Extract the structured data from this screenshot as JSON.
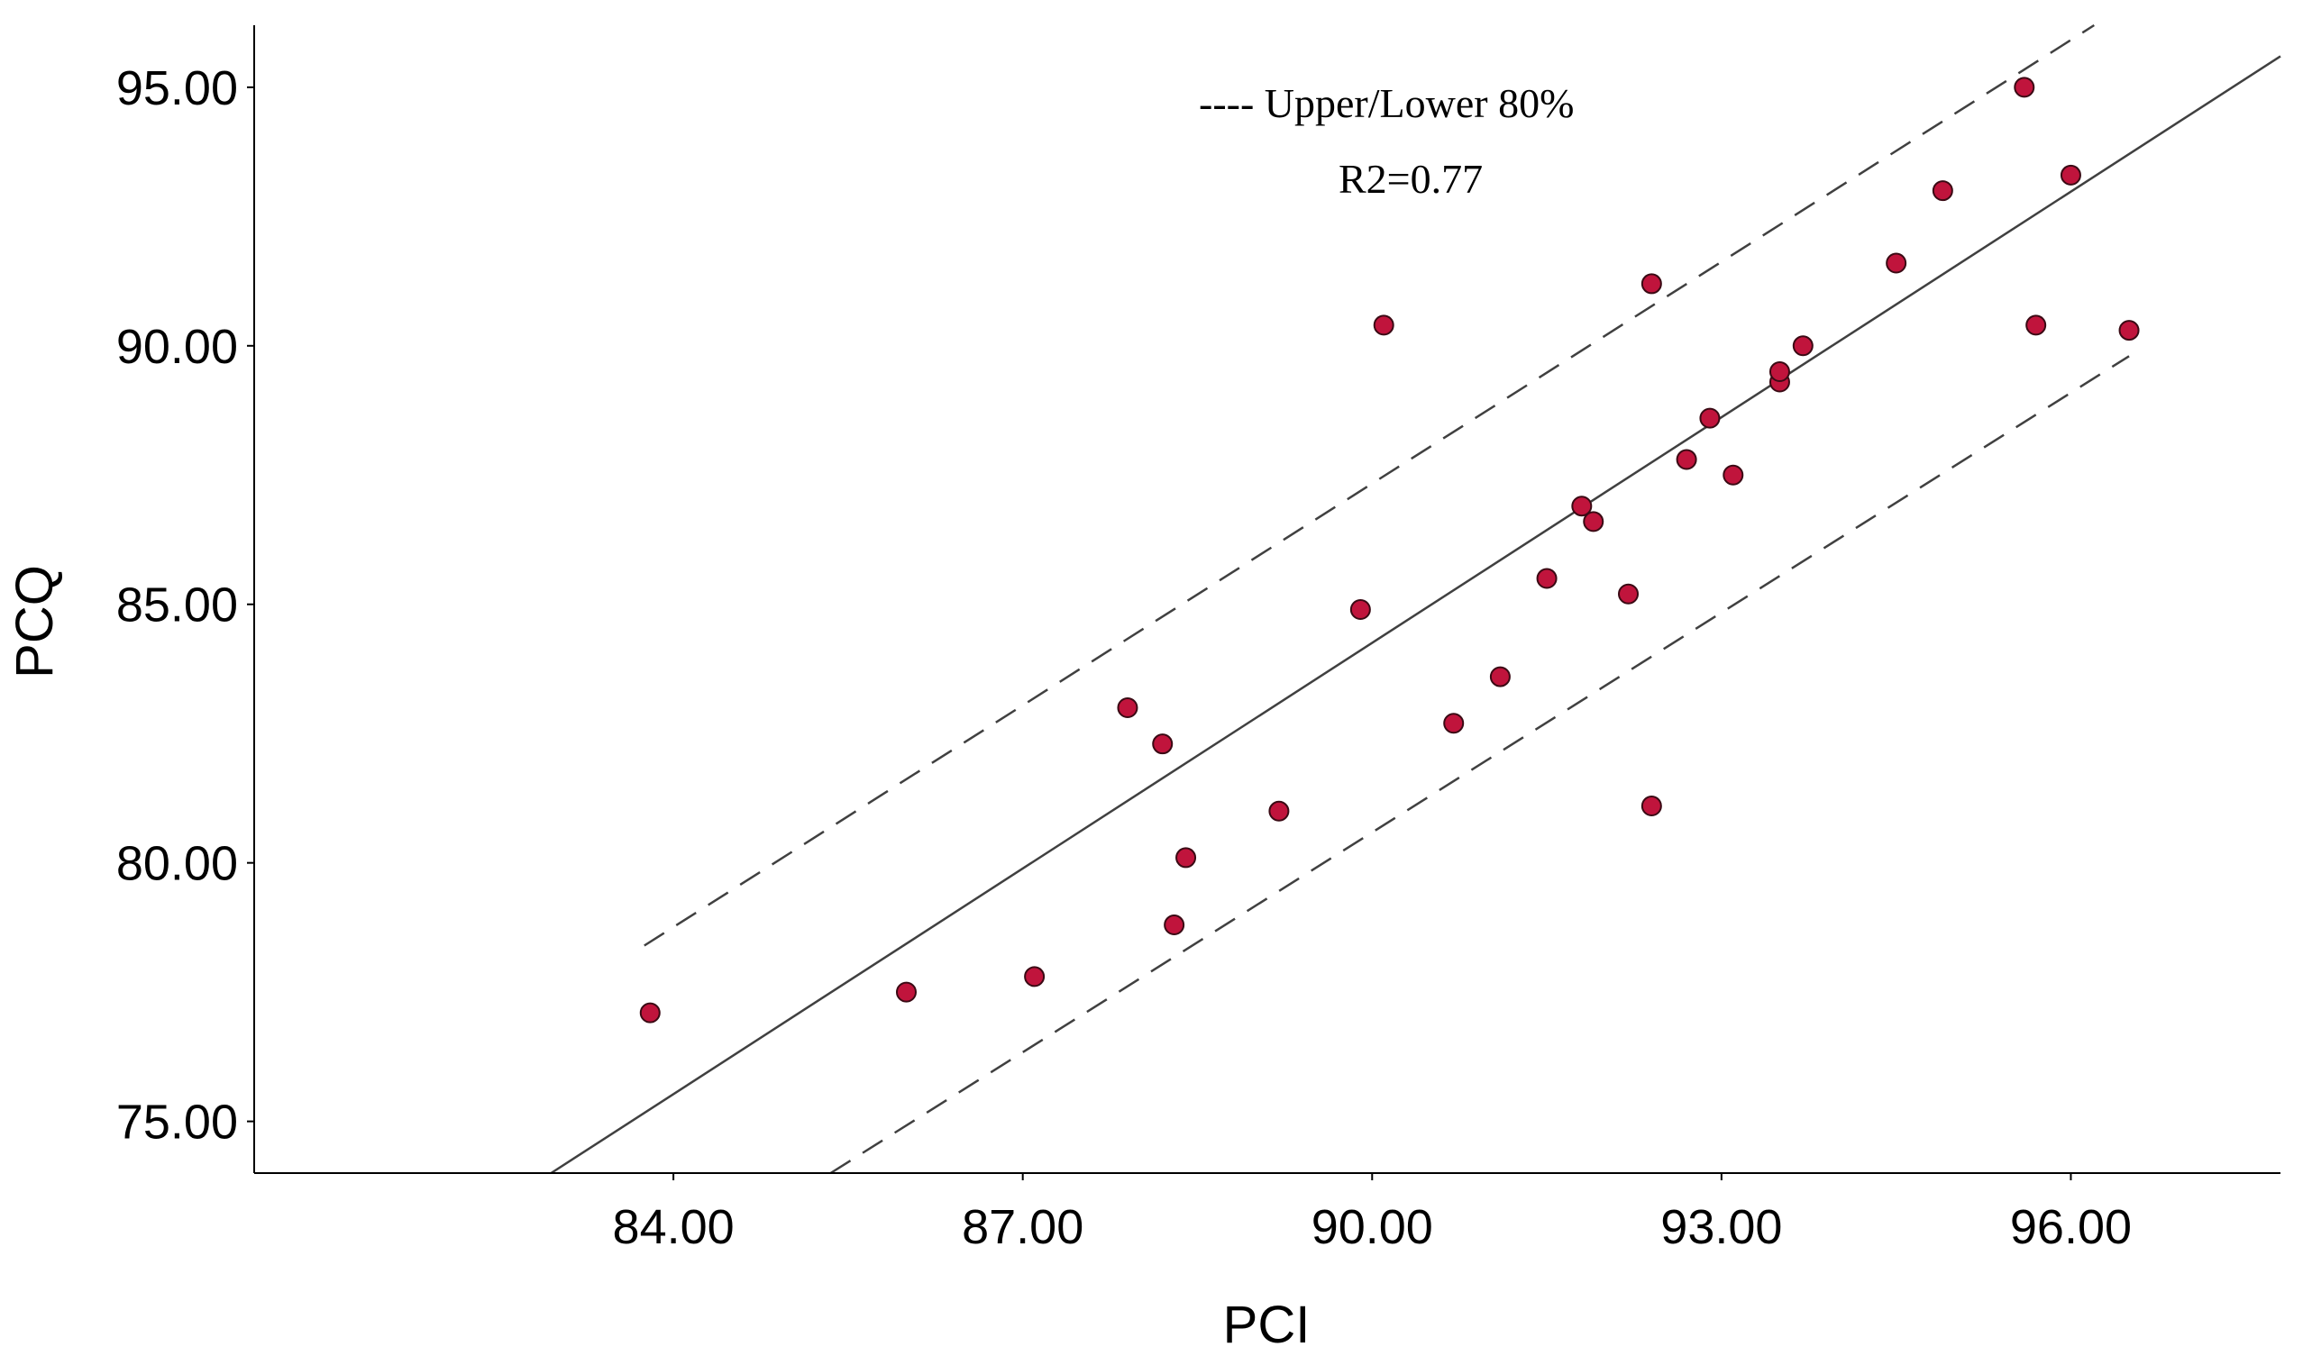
{
  "chart_data": {
    "type": "scatter",
    "xlabel": "PCI",
    "ylabel": "PCQ",
    "xlim": [
      80.4,
      97.8
    ],
    "ylim": [
      74.0,
      96.2
    ],
    "xticks": [
      "84.00",
      "87.00",
      "90.00",
      "93.00",
      "96.00"
    ],
    "xtick_values": [
      84,
      87,
      90,
      93,
      96
    ],
    "yticks": [
      "75.00",
      "80.00",
      "85.00",
      "90.00",
      "95.00"
    ],
    "ytick_values": [
      75,
      80,
      85,
      90,
      95
    ],
    "grid": false,
    "points": [
      {
        "x": 83.8,
        "y": 77.1
      },
      {
        "x": 86.0,
        "y": 77.5
      },
      {
        "x": 87.1,
        "y": 77.8
      },
      {
        "x": 87.9,
        "y": 83.0
      },
      {
        "x": 88.2,
        "y": 82.3
      },
      {
        "x": 88.3,
        "y": 78.8
      },
      {
        "x": 88.4,
        "y": 80.1
      },
      {
        "x": 89.2,
        "y": 81.0
      },
      {
        "x": 89.9,
        "y": 84.9
      },
      {
        "x": 90.1,
        "y": 90.4
      },
      {
        "x": 90.7,
        "y": 82.7
      },
      {
        "x": 91.1,
        "y": 83.6
      },
      {
        "x": 91.5,
        "y": 85.5
      },
      {
        "x": 91.8,
        "y": 86.9
      },
      {
        "x": 91.9,
        "y": 86.6
      },
      {
        "x": 92.2,
        "y": 85.2
      },
      {
        "x": 92.4,
        "y": 91.2
      },
      {
        "x": 92.4,
        "y": 81.1
      },
      {
        "x": 92.7,
        "y": 87.8
      },
      {
        "x": 92.9,
        "y": 88.6
      },
      {
        "x": 93.1,
        "y": 87.5
      },
      {
        "x": 93.5,
        "y": 89.3
      },
      {
        "x": 93.5,
        "y": 89.5
      },
      {
        "x": 93.7,
        "y": 90.0
      },
      {
        "x": 94.5,
        "y": 91.6
      },
      {
        "x": 94.9,
        "y": 93.0
      },
      {
        "x": 95.6,
        "y": 95.0
      },
      {
        "x": 95.7,
        "y": 90.4
      },
      {
        "x": 96.0,
        "y": 93.3
      },
      {
        "x": 96.5,
        "y": 90.3
      }
    ],
    "fit_line": {
      "x": [
        82.95,
        97.8
      ],
      "y": [
        74.0,
        95.6
      ]
    },
    "upper_band": {
      "x": [
        83.75,
        96.2
      ],
      "y": [
        78.4,
        96.2
      ]
    },
    "lower_band": {
      "x": [
        85.35,
        96.5
      ],
      "y": [
        74.0,
        89.8
      ]
    },
    "marker_fill": "#c0143c",
    "marker_stroke": "#3a0a14",
    "line_color": "#404040",
    "annotations": {
      "legend_text": "---- Upper/Lower 80%",
      "r2_text": "R2=0.77"
    }
  }
}
